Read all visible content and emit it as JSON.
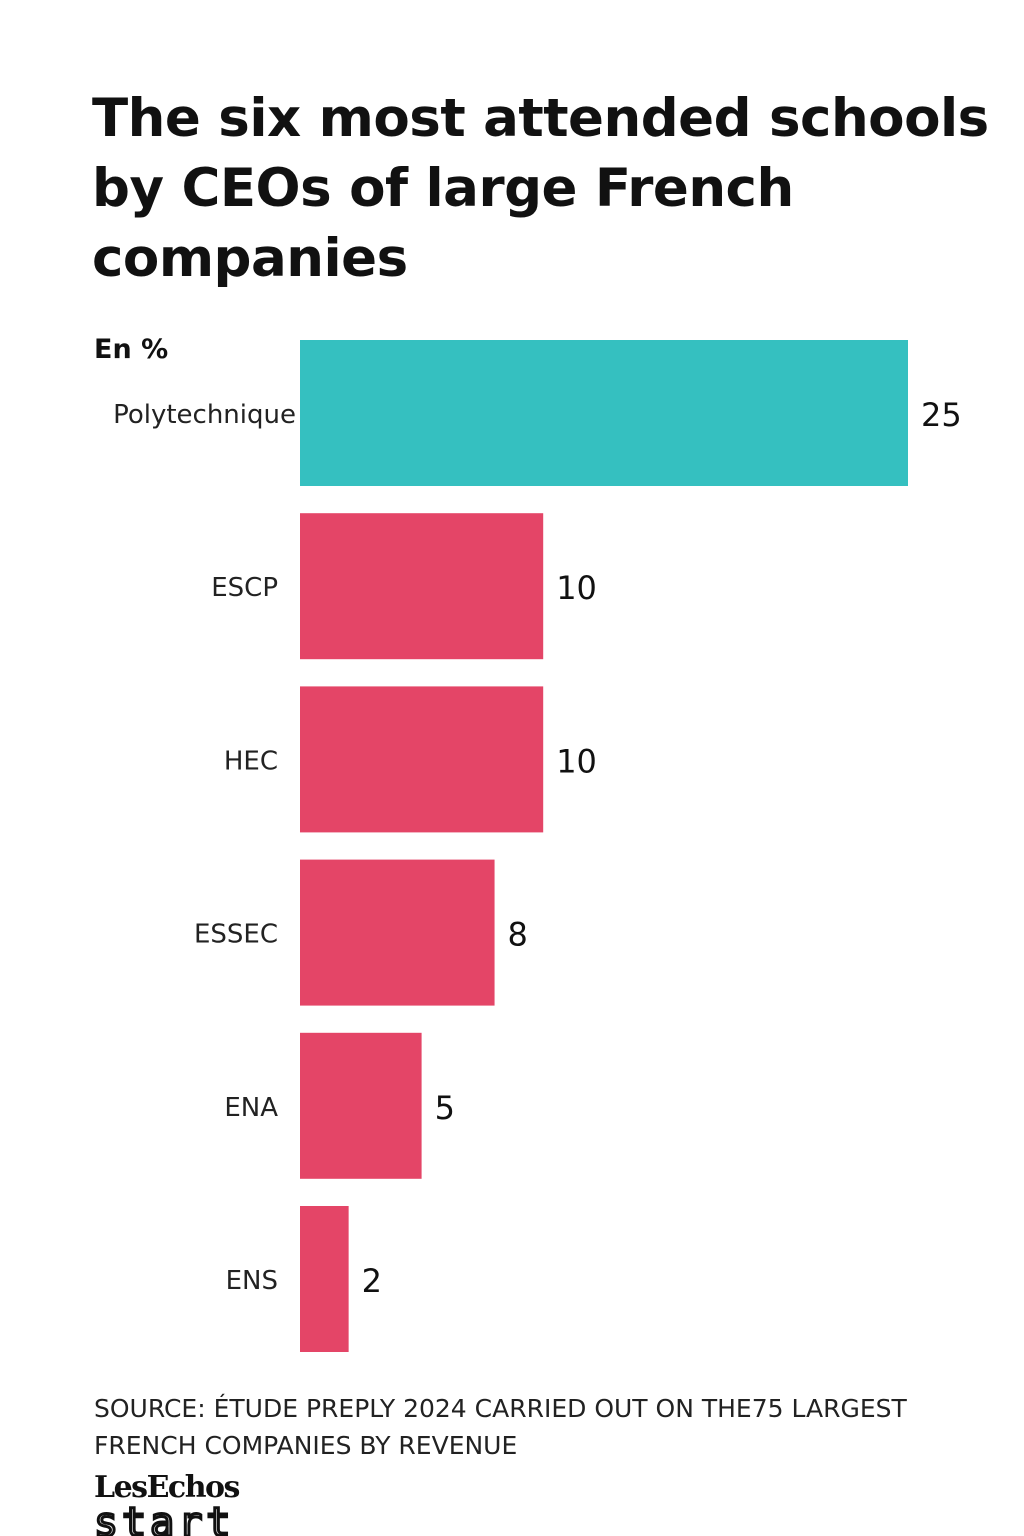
{
  "chart_data": {
    "type": "bar",
    "orientation": "horizontal",
    "title": "The six most attended schools by CEOs of large French companies",
    "unit_label": "En %",
    "categories": [
      "Polytechnique",
      "ESCP",
      "HEC",
      "ESSEC",
      "ENA",
      "ENS"
    ],
    "values": [
      25,
      10,
      10,
      8,
      5,
      2
    ],
    "highlight_index": 0,
    "colors": {
      "highlight": "#35c0c0",
      "default": "#e44567"
    },
    "grid": false,
    "legend": "none"
  },
  "source": "SOURCE: ÉTUDE PREPLY 2024 CARRIED OUT ON THE75 LARGEST FRENCH COMPANIES BY REVENUE",
  "logo": {
    "top_text": "LesEchos",
    "bottom_text": "start"
  }
}
